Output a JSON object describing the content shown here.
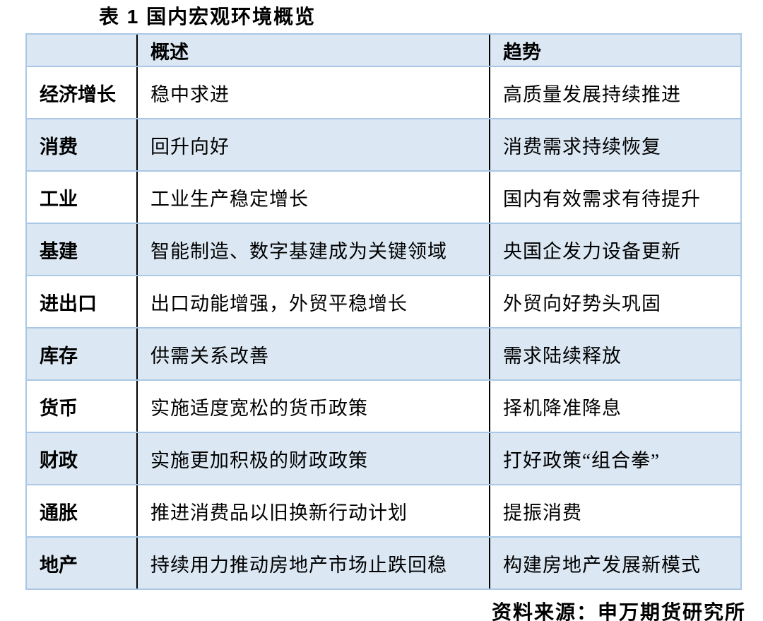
{
  "title": "表 1  国内宏观环境概览",
  "table": {
    "header": {
      "category": "",
      "overview": "概述",
      "trend": "趋势"
    },
    "rows": [
      {
        "label": "经济增长",
        "overview": "稳中求进",
        "trend": "高质量发展持续推进"
      },
      {
        "label": "消费",
        "overview": "回升向好",
        "trend": "消费需求持续恢复"
      },
      {
        "label": "工业",
        "overview": "工业生产稳定增长",
        "trend": "国内有效需求有待提升"
      },
      {
        "label": "基建",
        "overview": "智能制造、数字基建成为关键领域",
        "trend": "央国企发力设备更新"
      },
      {
        "label": "进出口",
        "overview": "出口动能增强，外贸平稳增长",
        "trend": "外贸向好势头巩固"
      },
      {
        "label": "库存",
        "overview": "供需关系改善",
        "trend": "需求陆续释放"
      },
      {
        "label": "货币",
        "overview": "实施适度宽松的货币政策",
        "trend": "择机降准降息"
      },
      {
        "label": "财政",
        "overview": "实施更加积极的财政政策",
        "trend": "打好政策“组合拳”"
      },
      {
        "label": "通胀",
        "overview": "推进消费品以旧换新行动计划",
        "trend": "提振消费"
      },
      {
        "label": "地产",
        "overview": "持续用力推动房地产市场止跌回稳",
        "trend": "构建房地产发展新模式"
      }
    ]
  },
  "source": "资料来源：申万期货研究所",
  "colors": {
    "stripe_bg": "#dbe8f4",
    "row_border": "#aac8e6",
    "column_divider": "#000000",
    "text": "#000000"
  }
}
